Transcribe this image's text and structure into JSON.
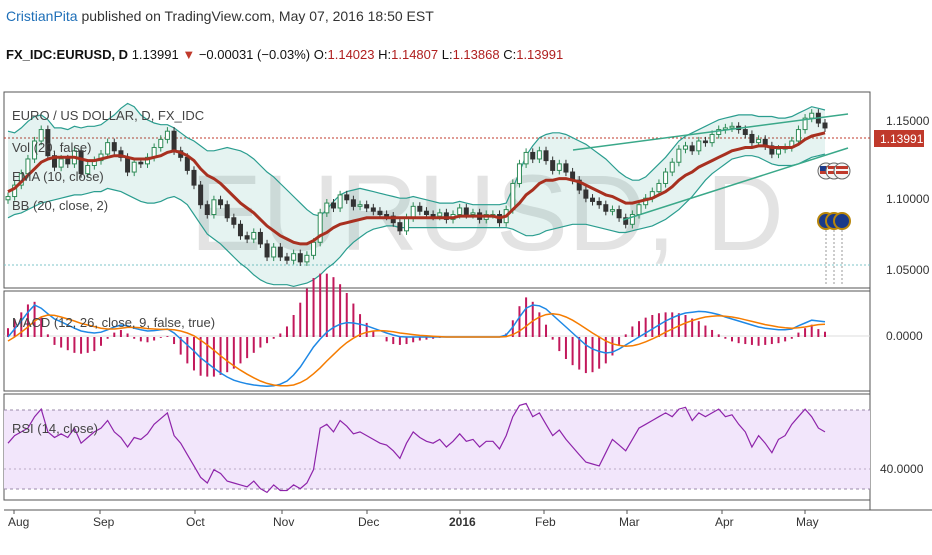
{
  "header": {
    "author": "CristianPita",
    "published": "published on TradingView.com, May 07, 2016 18:50 EST"
  },
  "symbol_bar": {
    "ticker": "FX_IDC:EURUSD, D",
    "last": "1.13991",
    "change": "−0.00031 (−0.03%)",
    "o_label": "O:",
    "o_value": "1.14023",
    "h_label": "H:",
    "h_value": "1.14807",
    "l_label": "L:",
    "l_value": "1.13868",
    "c_label": "C:",
    "c_value": "1.13991"
  },
  "watermark": "EURUSD, D",
  "colors": {
    "up": "#2e8b57",
    "down": "#333333",
    "ema": "#a83020",
    "bb": "#2a9d8f",
    "macd": "#1e88e5",
    "signal": "#f57c00",
    "hist": "#c2185b",
    "rsi": "#8e24aa",
    "price_tag": "#c0392b"
  },
  "chart_data": [
    {
      "type": "line",
      "title": "EURO / US DOLLAR, D, FX_IDC",
      "legend": [
        "Vol (20, false)",
        "EMA (10, close)",
        "BB (20, close, 2)"
      ],
      "x_ticks": [
        "Aug",
        "Sep",
        "Oct",
        "Nov",
        "Dec",
        "2016",
        "Feb",
        "Mar",
        "Apr",
        "May"
      ],
      "y_ticks": [
        "1.15000",
        "1.10000",
        "1.05000"
      ],
      "ylim": [
        1.042,
        1.162
      ],
      "last_price_label": "1.13991",
      "price_close_series": [
        1.098,
        1.105,
        1.112,
        1.121,
        1.132,
        1.139,
        1.123,
        1.116,
        1.121,
        1.118,
        1.126,
        1.112,
        1.117,
        1.12,
        1.124,
        1.131,
        1.126,
        1.122,
        1.113,
        1.119,
        1.118,
        1.122,
        1.128,
        1.133,
        1.138,
        1.126,
        1.122,
        1.114,
        1.105,
        1.093,
        1.087,
        1.096,
        1.093,
        1.085,
        1.081,
        1.074,
        1.072,
        1.076,
        1.069,
        1.061,
        1.067,
        1.061,
        1.059,
        1.063,
        1.058,
        1.062,
        1.07,
        1.088,
        1.094,
        1.091,
        1.099,
        1.096,
        1.092,
        1.093,
        1.091,
        1.089,
        1.087,
        1.086,
        1.082,
        1.077,
        1.085,
        1.092,
        1.089,
        1.087,
        1.086,
        1.088,
        1.084,
        1.087,
        1.091,
        1.087,
        1.088,
        1.084,
        1.087,
        1.087,
        1.082,
        1.09,
        1.106,
        1.118,
        1.125,
        1.121,
        1.126,
        1.12,
        1.114,
        1.118,
        1.113,
        1.108,
        1.102,
        1.097,
        1.095,
        1.093,
        1.089,
        1.09,
        1.085,
        1.081,
        1.087,
        1.093,
        1.097,
        1.101,
        1.106,
        1.113,
        1.119,
        1.127,
        1.129,
        1.126,
        1.132,
        1.131,
        1.136,
        1.139,
        1.14,
        1.141,
        1.139,
        1.136,
        1.131,
        1.133,
        1.129,
        1.124,
        1.127,
        1.128,
        1.132,
        1.139,
        1.146,
        1.149,
        1.143,
        1.14
      ],
      "ema_series": [
        1.101,
        1.103,
        1.107,
        1.111,
        1.115,
        1.119,
        1.121,
        1.122,
        1.122,
        1.122,
        1.122,
        1.121,
        1.12,
        1.12,
        1.121,
        1.122,
        1.123,
        1.123,
        1.122,
        1.121,
        1.121,
        1.121,
        1.122,
        1.123,
        1.125,
        1.126,
        1.125,
        1.123,
        1.12,
        1.115,
        1.111,
        1.109,
        1.106,
        1.102,
        1.098,
        1.094,
        1.091,
        1.088,
        1.084,
        1.08,
        1.077,
        1.074,
        1.072,
        1.07,
        1.069,
        1.069,
        1.071,
        1.074,
        1.076,
        1.079,
        1.081,
        1.082,
        1.083,
        1.084,
        1.085,
        1.085,
        1.085,
        1.085,
        1.085,
        1.085,
        1.085,
        1.085,
        1.085,
        1.085,
        1.085,
        1.085,
        1.085,
        1.085,
        1.086,
        1.086,
        1.086,
        1.086,
        1.086,
        1.086,
        1.085,
        1.086,
        1.09,
        1.094,
        1.099,
        1.102,
        1.106,
        1.108,
        1.108,
        1.109,
        1.109,
        1.108,
        1.107,
        1.105,
        1.103,
        1.101,
        1.099,
        1.098,
        1.096,
        1.094,
        1.094,
        1.095,
        1.096,
        1.097,
        1.099,
        1.101,
        1.104,
        1.108,
        1.111,
        1.113,
        1.116,
        1.118,
        1.12,
        1.122,
        1.124,
        1.126,
        1.127,
        1.128,
        1.128,
        1.129,
        1.129,
        1.128,
        1.128,
        1.128,
        1.128,
        1.13,
        1.133,
        1.135,
        1.136,
        1.137
      ],
      "bb_upper_series": [
        1.138,
        1.137,
        1.14,
        1.144,
        1.147,
        1.148,
        1.145,
        1.14,
        1.14,
        1.139,
        1.141,
        1.14,
        1.141,
        1.141,
        1.142,
        1.145,
        1.148,
        1.152,
        1.155,
        1.153,
        1.148,
        1.145,
        1.143,
        1.142,
        1.142,
        1.14,
        1.137,
        1.134,
        1.132,
        1.129,
        1.126,
        1.126,
        1.127,
        1.128,
        1.127,
        1.126,
        1.124,
        1.121,
        1.117,
        1.113,
        1.11,
        1.106,
        1.102,
        1.098,
        1.094,
        1.09,
        1.087,
        1.086,
        1.09,
        1.095,
        1.099,
        1.101,
        1.102,
        1.103,
        1.102,
        1.101,
        1.1,
        1.099,
        1.098,
        1.097,
        1.097,
        1.098,
        1.097,
        1.096,
        1.095,
        1.094,
        1.094,
        1.094,
        1.095,
        1.094,
        1.093,
        1.093,
        1.093,
        1.093,
        1.093,
        1.094,
        1.103,
        1.113,
        1.123,
        1.129,
        1.134,
        1.136,
        1.137,
        1.137,
        1.136,
        1.134,
        1.132,
        1.13,
        1.127,
        1.124,
        1.121,
        1.117,
        1.113,
        1.11,
        1.108,
        1.108,
        1.11,
        1.114,
        1.118,
        1.122,
        1.127,
        1.132,
        1.135,
        1.137,
        1.139,
        1.141,
        1.143,
        1.145,
        1.146,
        1.147,
        1.148,
        1.148,
        1.148,
        1.147,
        1.147,
        1.147,
        1.146,
        1.146,
        1.147,
        1.149,
        1.151,
        1.153,
        1.152,
        1.151
      ],
      "bb_lower_series": [
        1.085,
        1.087,
        1.088,
        1.09,
        1.092,
        1.094,
        1.095,
        1.096,
        1.097,
        1.098,
        1.099,
        1.099,
        1.1,
        1.101,
        1.101,
        1.103,
        1.102,
        1.101,
        1.099,
        1.097,
        1.095,
        1.094,
        1.094,
        1.095,
        1.097,
        1.098,
        1.096,
        1.093,
        1.087,
        1.081,
        1.075,
        1.072,
        1.069,
        1.065,
        1.061,
        1.057,
        1.054,
        1.05,
        1.047,
        1.045,
        1.044,
        1.044,
        1.044,
        1.043,
        1.044,
        1.045,
        1.047,
        1.05,
        1.054,
        1.057,
        1.061,
        1.066,
        1.07,
        1.073,
        1.076,
        1.078,
        1.079,
        1.08,
        1.08,
        1.079,
        1.079,
        1.079,
        1.079,
        1.079,
        1.079,
        1.079,
        1.079,
        1.079,
        1.079,
        1.079,
        1.079,
        1.079,
        1.079,
        1.079,
        1.079,
        1.079,
        1.078,
        1.076,
        1.074,
        1.074,
        1.075,
        1.077,
        1.078,
        1.079,
        1.08,
        1.081,
        1.081,
        1.081,
        1.08,
        1.079,
        1.078,
        1.077,
        1.076,
        1.076,
        1.077,
        1.078,
        1.079,
        1.08,
        1.082,
        1.084,
        1.087,
        1.09,
        1.094,
        1.098,
        1.103,
        1.108,
        1.112,
        1.115,
        1.118,
        1.121,
        1.122,
        1.123,
        1.123,
        1.122,
        1.12,
        1.118,
        1.117,
        1.117,
        1.117,
        1.118,
        1.12,
        1.122,
        1.123,
        1.124
      ]
    },
    {
      "type": "line",
      "title": "MACD (12, 26, close, 9, false, true)",
      "y_ticks": [
        "0.0000"
      ],
      "ylim": [
        -0.0135,
        0.0115
      ],
      "macd_series": [
        0.0,
        0.002,
        0.004,
        0.0062,
        0.008,
        0.0072,
        0.0058,
        0.0045,
        0.0038,
        0.003,
        0.0022,
        0.0015,
        0.0012,
        0.001,
        0.0012,
        0.0018,
        0.0025,
        0.003,
        0.0028,
        0.0022,
        0.0018,
        0.0015,
        0.0016,
        0.0018,
        0.002,
        0.001,
        -0.0005,
        -0.002,
        -0.0035,
        -0.0052,
        -0.0065,
        -0.0078,
        -0.009,
        -0.01,
        -0.0108,
        -0.0113,
        -0.0117,
        -0.012,
        -0.0122,
        -0.0123,
        -0.0122,
        -0.0118,
        -0.011,
        -0.0095,
        -0.0075,
        -0.005,
        -0.0025,
        -0.0005,
        0.0012,
        0.0024,
        0.0032,
        0.0036,
        0.0035,
        0.0032,
        0.0028,
        0.0022,
        0.0016,
        0.001,
        0.0005,
        0.0001,
        0.0,
        0.0,
        0.0,
        0.0,
        0.0,
        0.0,
        0.0,
        0.0,
        0.0,
        0.0,
        0.0,
        0.0,
        0.0,
        0.0,
        0.0,
        0.0005,
        0.0025,
        0.005,
        0.0072,
        0.008,
        0.0078,
        0.007,
        0.0055,
        0.004,
        0.0025,
        0.001,
        -0.0005,
        -0.002,
        -0.003,
        -0.0036,
        -0.004,
        -0.0038,
        -0.003,
        -0.002,
        -0.001,
        0.0,
        0.001,
        0.002,
        0.003,
        0.004,
        0.0048,
        0.0055,
        0.006,
        0.0062,
        0.0064,
        0.0063,
        0.006,
        0.0056,
        0.005,
        0.0045,
        0.004,
        0.0035,
        0.003,
        0.0025,
        0.0022,
        0.002,
        0.0018,
        0.0018,
        0.002,
        0.0028,
        0.0035,
        0.0042,
        0.004,
        0.0038
      ],
      "signal_series": [
        -0.001,
        0.0,
        0.0012,
        0.0025,
        0.004,
        0.005,
        0.0055,
        0.0054,
        0.005,
        0.0045,
        0.004,
        0.0034,
        0.003,
        0.0026,
        0.0022,
        0.002,
        0.002,
        0.0022,
        0.0024,
        0.0024,
        0.0023,
        0.0021,
        0.002,
        0.0019,
        0.0019,
        0.0018,
        0.0015,
        0.001,
        0.0003,
        -0.0008,
        -0.002,
        -0.0033,
        -0.0047,
        -0.006,
        -0.0072,
        -0.0083,
        -0.0093,
        -0.0102,
        -0.011,
        -0.0116,
        -0.012,
        -0.0122,
        -0.0122,
        -0.012,
        -0.0114,
        -0.0105,
        -0.0092,
        -0.0077,
        -0.006,
        -0.0044,
        -0.0028,
        -0.0014,
        -0.0003,
        0.0006,
        0.0012,
        0.0015,
        0.0016,
        0.0015,
        0.0013,
        0.001,
        0.0008,
        0.0006,
        0.0004,
        0.0003,
        0.0002,
        0.0001,
        0.0,
        0.0,
        0.0,
        0.0,
        0.0,
        0.0,
        0.0,
        0.0,
        0.0,
        0.0001,
        0.0006,
        0.0015,
        0.0027,
        0.004,
        0.005,
        0.0056,
        0.0058,
        0.0056,
        0.005,
        0.0042,
        0.0032,
        0.0021,
        0.001,
        0.0,
        -0.001,
        -0.0017,
        -0.0021,
        -0.0023,
        -0.0022,
        -0.0018,
        -0.0012,
        -0.0005,
        0.0003,
        0.0012,
        0.002,
        0.0028,
        0.0035,
        0.0041,
        0.0046,
        0.005,
        0.0052,
        0.0053,
        0.0052,
        0.005,
        0.0047,
        0.0043,
        0.0039,
        0.0035,
        0.0031,
        0.0028,
        0.0025,
        0.0023,
        0.0022,
        0.0023,
        0.0025,
        0.0028,
        0.0031,
        0.0032
      ]
    },
    {
      "type": "line",
      "title": "RSI (14, close)",
      "y_ticks": [
        "40.0000"
      ],
      "ylim": [
        22,
        78
      ],
      "series": [
        52,
        56,
        58,
        60,
        66,
        70,
        58,
        55,
        57,
        55,
        60,
        52,
        55,
        58,
        60,
        64,
        58,
        55,
        50,
        55,
        54,
        57,
        62,
        65,
        68,
        56,
        52,
        46,
        40,
        34,
        31,
        38,
        36,
        32,
        31,
        30,
        29,
        32,
        28,
        26,
        30,
        27,
        27,
        30,
        28,
        31,
        38,
        60,
        62,
        58,
        64,
        61,
        57,
        58,
        56,
        54,
        52,
        51,
        48,
        44,
        52,
        58,
        55,
        53,
        52,
        54,
        50,
        53,
        57,
        53,
        54,
        50,
        53,
        53,
        49,
        56,
        66,
        72,
        73,
        66,
        68,
        62,
        56,
        59,
        54,
        50,
        46,
        42,
        41,
        40,
        47,
        54,
        51,
        48,
        54,
        60,
        62,
        64,
        66,
        68,
        66,
        70,
        71,
        64,
        68,
        66,
        68,
        70,
        66,
        67,
        62,
        58,
        50,
        56,
        52,
        47,
        54,
        56,
        62,
        66,
        70,
        66,
        60,
        58
      ]
    }
  ]
}
